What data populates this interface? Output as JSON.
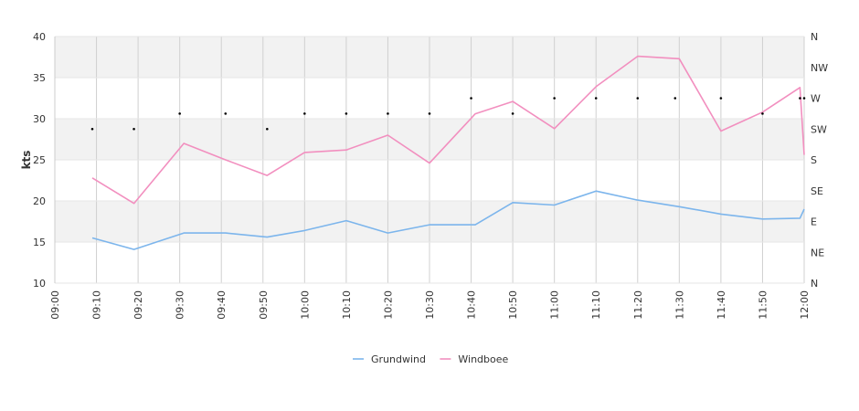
{
  "chart_data": {
    "type": "line",
    "title": "",
    "xlabel": "",
    "ylabel": "kts",
    "ylim": [
      10,
      40
    ],
    "yticks": [
      "10",
      "15",
      "20",
      "25",
      "30",
      "35",
      "40"
    ],
    "y2_ticks": [
      "N",
      "NE",
      "E",
      "SE",
      "S",
      "SW",
      "W",
      "NW",
      "N"
    ],
    "grid": true,
    "legend_position": "bottom",
    "x_ticks": [
      "09:00",
      "09:10",
      "09:20",
      "09:30",
      "09:40",
      "09:50",
      "10:00",
      "10:10",
      "10:20",
      "10:30",
      "10:40",
      "10:50",
      "11:00",
      "11:10",
      "11:20",
      "11:30",
      "11:40",
      "11:50",
      "12:00"
    ],
    "series": [
      {
        "name": "Grundwind",
        "color": "#7cb5ec",
        "points": [
          [
            "09:09",
            15.5
          ],
          [
            "09:19",
            14.1
          ],
          [
            "09:31",
            16.1
          ],
          [
            "09:41",
            16.1
          ],
          [
            "09:51",
            15.6
          ],
          [
            "10:00",
            16.4
          ],
          [
            "10:10",
            17.6
          ],
          [
            "10:20",
            16.1
          ],
          [
            "10:30",
            17.1
          ],
          [
            "10:41",
            17.1
          ],
          [
            "10:50",
            19.8
          ],
          [
            "11:00",
            19.5
          ],
          [
            "11:10",
            21.2
          ],
          [
            "11:20",
            20.1
          ],
          [
            "11:30",
            19.3
          ],
          [
            "11:40",
            18.4
          ],
          [
            "11:50",
            17.8
          ],
          [
            "11:59",
            17.9
          ],
          [
            "12:00",
            19.0
          ]
        ]
      },
      {
        "name": "Windboee",
        "color": "#f28fbf",
        "points": [
          [
            "09:09",
            22.8
          ],
          [
            "09:19",
            19.7
          ],
          [
            "09:31",
            27.0
          ],
          [
            "09:41",
            25.0
          ],
          [
            "09:51",
            23.1
          ],
          [
            "10:00",
            25.9
          ],
          [
            "10:10",
            26.2
          ],
          [
            "10:20",
            28.0
          ],
          [
            "10:30",
            24.6
          ],
          [
            "10:41",
            30.6
          ],
          [
            "10:50",
            32.1
          ],
          [
            "11:00",
            28.8
          ],
          [
            "11:10",
            33.9
          ],
          [
            "11:20",
            37.6
          ],
          [
            "11:30",
            37.3
          ],
          [
            "11:40",
            28.5
          ],
          [
            "11:50",
            30.8
          ],
          [
            "11:59",
            33.8
          ],
          [
            "12:00",
            25.6
          ]
        ]
      }
    ],
    "wind_direction": {
      "color": "#000000",
      "points": [
        [
          "09:09",
          "SW"
        ],
        [
          "09:19",
          "SW"
        ],
        [
          "09:30",
          "WSW"
        ],
        [
          "09:41",
          "WSW"
        ],
        [
          "09:51",
          "SW"
        ],
        [
          "10:00",
          "WSW"
        ],
        [
          "10:10",
          "WSW"
        ],
        [
          "10:20",
          "WSW"
        ],
        [
          "10:30",
          "WSW"
        ],
        [
          "10:40",
          "W"
        ],
        [
          "10:50",
          "WSW"
        ],
        [
          "11:00",
          "W"
        ],
        [
          "11:10",
          "W"
        ],
        [
          "11:20",
          "W"
        ],
        [
          "11:29",
          "W"
        ],
        [
          "11:40",
          "W"
        ],
        [
          "11:50",
          "WSW"
        ],
        [
          "11:59",
          "W"
        ],
        [
          "12:00",
          "W"
        ]
      ]
    }
  }
}
